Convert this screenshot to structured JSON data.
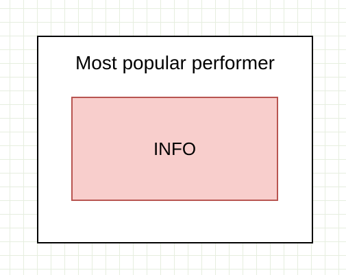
{
  "diagram": {
    "container": {
      "title": "Most popular performer"
    },
    "info_box": {
      "label": "INFO",
      "fill_color": "#f8cecc",
      "stroke_color": "#b85450"
    }
  }
}
